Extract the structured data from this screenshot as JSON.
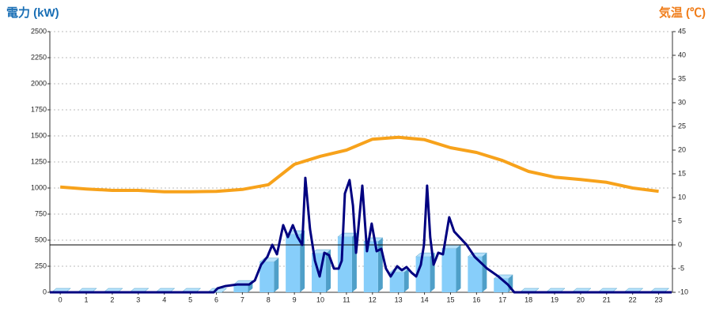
{
  "chart_data": {
    "type": "bar-line",
    "y_title": "電力 (kW)",
    "y2_title": "気温 (℃)",
    "xlim": [
      -0.4,
      23.53
    ],
    "xticks": [
      0,
      1,
      2,
      3,
      4,
      5,
      6,
      7,
      8,
      9,
      10,
      11,
      12,
      13,
      14,
      15,
      16,
      17,
      18,
      19,
      20,
      21,
      22,
      23
    ],
    "ylim": [
      0,
      2500
    ],
    "yticks": [
      0,
      250,
      500,
      750,
      1000,
      1250,
      1500,
      1750,
      2000,
      2250,
      2500
    ],
    "y2lim": [
      -10,
      45
    ],
    "y2ticks": [
      -10,
      -5,
      0,
      5,
      10,
      15,
      20,
      25,
      30,
      35,
      40,
      45
    ],
    "grid": true,
    "reference_line": {
      "axis": "y2",
      "value": 0
    },
    "bars": {
      "color": "#87cefa",
      "side_color": "#4f9fc8",
      "values": [
        0,
        0,
        0,
        0,
        0,
        0,
        0,
        75,
        290,
        553,
        371,
        530,
        485,
        190,
        340,
        417,
        340,
        129,
        0,
        0,
        0,
        0,
        0,
        0
      ]
    },
    "series": [
      {
        "color": "#000080",
        "x": [
          -0.4,
          5.9,
          6.05,
          6.35,
          6.8,
          7.26,
          7.48,
          7.72,
          7.96,
          8.15,
          8.33,
          8.57,
          8.75,
          8.94,
          9.12,
          9.3,
          9.42,
          9.6,
          9.79,
          9.97,
          10.15,
          10.33,
          10.52,
          10.7,
          10.82,
          10.94,
          11.12,
          11.25,
          11.37,
          11.61,
          11.79,
          11.97,
          12.16,
          12.34,
          12.52,
          12.7,
          12.95,
          13.13,
          13.31,
          13.5,
          13.68,
          13.86,
          13.98,
          14.1,
          14.22,
          14.35,
          14.53,
          14.71,
          14.95,
          15.14,
          15.62,
          15.93,
          16.41,
          16.84,
          17.2,
          17.45,
          23.5
        ],
        "values": [
          0,
          0,
          38,
          60,
          75,
          75,
          114,
          265,
          340,
          455,
          364,
          644,
          530,
          644,
          530,
          455,
          1098,
          606,
          303,
          152,
          379,
          356,
          227,
          227,
          303,
          947,
          1076,
          833,
          379,
          1023,
          394,
          659,
          394,
          417,
          227,
          152,
          250,
          212,
          242,
          189,
          152,
          265,
          455,
          1023,
          530,
          265,
          379,
          364,
          720,
          583,
          455,
          340,
          227,
          152,
          75,
          0,
          0
        ]
      },
      {
        "color": "#f7a21b",
        "axis": "y2",
        "x": [
          0,
          1,
          2,
          3,
          4,
          5,
          6,
          7,
          8,
          9,
          10,
          11,
          12,
          13,
          14,
          15,
          16,
          17,
          18,
          19,
          20,
          21,
          22,
          23
        ],
        "values": [
          12.2,
          11.8,
          11.5,
          11.5,
          11.2,
          11.2,
          11.3,
          11.7,
          12.7,
          17,
          18.7,
          20,
          22.3,
          22.7,
          22.2,
          20.5,
          19.5,
          17.8,
          15.5,
          14.3,
          13.8,
          13.2,
          12,
          11.3
        ]
      }
    ]
  }
}
